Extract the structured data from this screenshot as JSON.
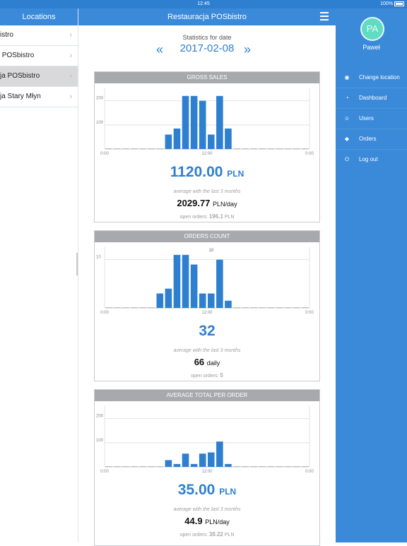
{
  "status": {
    "time": "12:45",
    "battery": "100%"
  },
  "left_panel": {
    "title": "Locations",
    "items": [
      {
        "label": "istro"
      },
      {
        "label": " POSbistro"
      },
      {
        "label": "ja POSbistro"
      },
      {
        "label": "ja Stary Młyn"
      }
    ]
  },
  "header": {
    "title": "Restauracja POSbistro"
  },
  "date": {
    "label": "Statistics for date",
    "value": "2017-02-08",
    "prev_icon": "double-chevron-left",
    "next_icon": "double-chevron-right"
  },
  "cards": [
    {
      "title": "GROSS SALES",
      "value": "1120.00",
      "unit": "PLN",
      "avg_note": "average with the last 3 months",
      "per_value": "2029.77",
      "per_unit": "PLN/day",
      "open_label": "open orders:",
      "open_value": "196.1",
      "open_unit": "PLN"
    },
    {
      "title": "ORDERS COUNT",
      "value": "32",
      "unit": "",
      "avg_note": "average with the last 3 months",
      "per_value": "66",
      "per_unit": "daily",
      "open_label": "open orders:",
      "open_value": "5",
      "open_unit": ""
    },
    {
      "title": "AVERAGE TOTAL PER ORDER",
      "value": "35.00",
      "unit": "PLN",
      "avg_note": "average with the last 3 months",
      "per_value": "44.9",
      "per_unit": "PLN/day",
      "open_label": "open orders:",
      "open_value": "38.22",
      "open_unit": "PLN"
    }
  ],
  "chart_data": [
    {
      "type": "bar",
      "title": "GROSS SALES",
      "x_labels": [
        "0:00",
        "12:00",
        "0:00"
      ],
      "y_ticks": [
        "200",
        "100"
      ],
      "ylim": [
        0,
        240
      ],
      "hours": 24,
      "values": [
        0,
        0,
        0,
        0,
        0,
        0,
        0,
        60,
        85,
        220,
        220,
        200,
        60,
        220,
        85,
        0,
        0,
        0,
        0,
        0,
        0,
        0,
        0,
        0
      ],
      "value_labels": []
    },
    {
      "type": "bar",
      "title": "ORDERS COUNT",
      "x_labels": [
        "0:00",
        "12:00",
        "0:00"
      ],
      "y_ticks": [
        "10"
      ],
      "ylim": [
        0,
        12
      ],
      "hours": 24,
      "values": [
        0,
        0,
        0,
        0,
        0,
        0,
        3,
        4,
        11,
        11,
        9,
        3,
        3,
        10,
        1.5,
        0,
        0,
        0,
        0,
        0,
        0,
        0,
        0,
        0
      ],
      "value_labels": [
        {
          "hour": 12.5,
          "text": "10"
        }
      ]
    },
    {
      "type": "bar",
      "title": "AVERAGE TOTAL PER ORDER",
      "x_labels": [
        "0:00",
        "12:00",
        "0:00"
      ],
      "y_ticks": [
        "200",
        "100"
      ],
      "ylim": [
        0,
        240
      ],
      "hours": 24,
      "values": [
        0,
        0,
        0,
        0,
        0,
        0,
        0,
        28,
        12,
        55,
        12,
        55,
        60,
        105,
        12,
        0,
        0,
        0,
        0,
        0,
        0,
        0,
        0,
        0
      ],
      "value_labels": []
    }
  ],
  "side_menu": {
    "avatar": "PA",
    "user": "Paweł",
    "items": [
      {
        "label": "Change location",
        "icon": "map-pin-icon",
        "glyph": "◉"
      },
      {
        "label": "Dashboard",
        "icon": "dashboard-icon",
        "glyph": "◔"
      },
      {
        "label": "Users",
        "icon": "user-icon",
        "glyph": "☺"
      },
      {
        "label": "Orders",
        "icon": "tags-icon",
        "glyph": "◆"
      },
      {
        "label": "Log out",
        "icon": "power-icon",
        "glyph": "⏻"
      }
    ]
  },
  "colors": {
    "accent": "#3b8ad9",
    "bar": "#2f7fd0",
    "card_head": "#a7a9ac"
  }
}
